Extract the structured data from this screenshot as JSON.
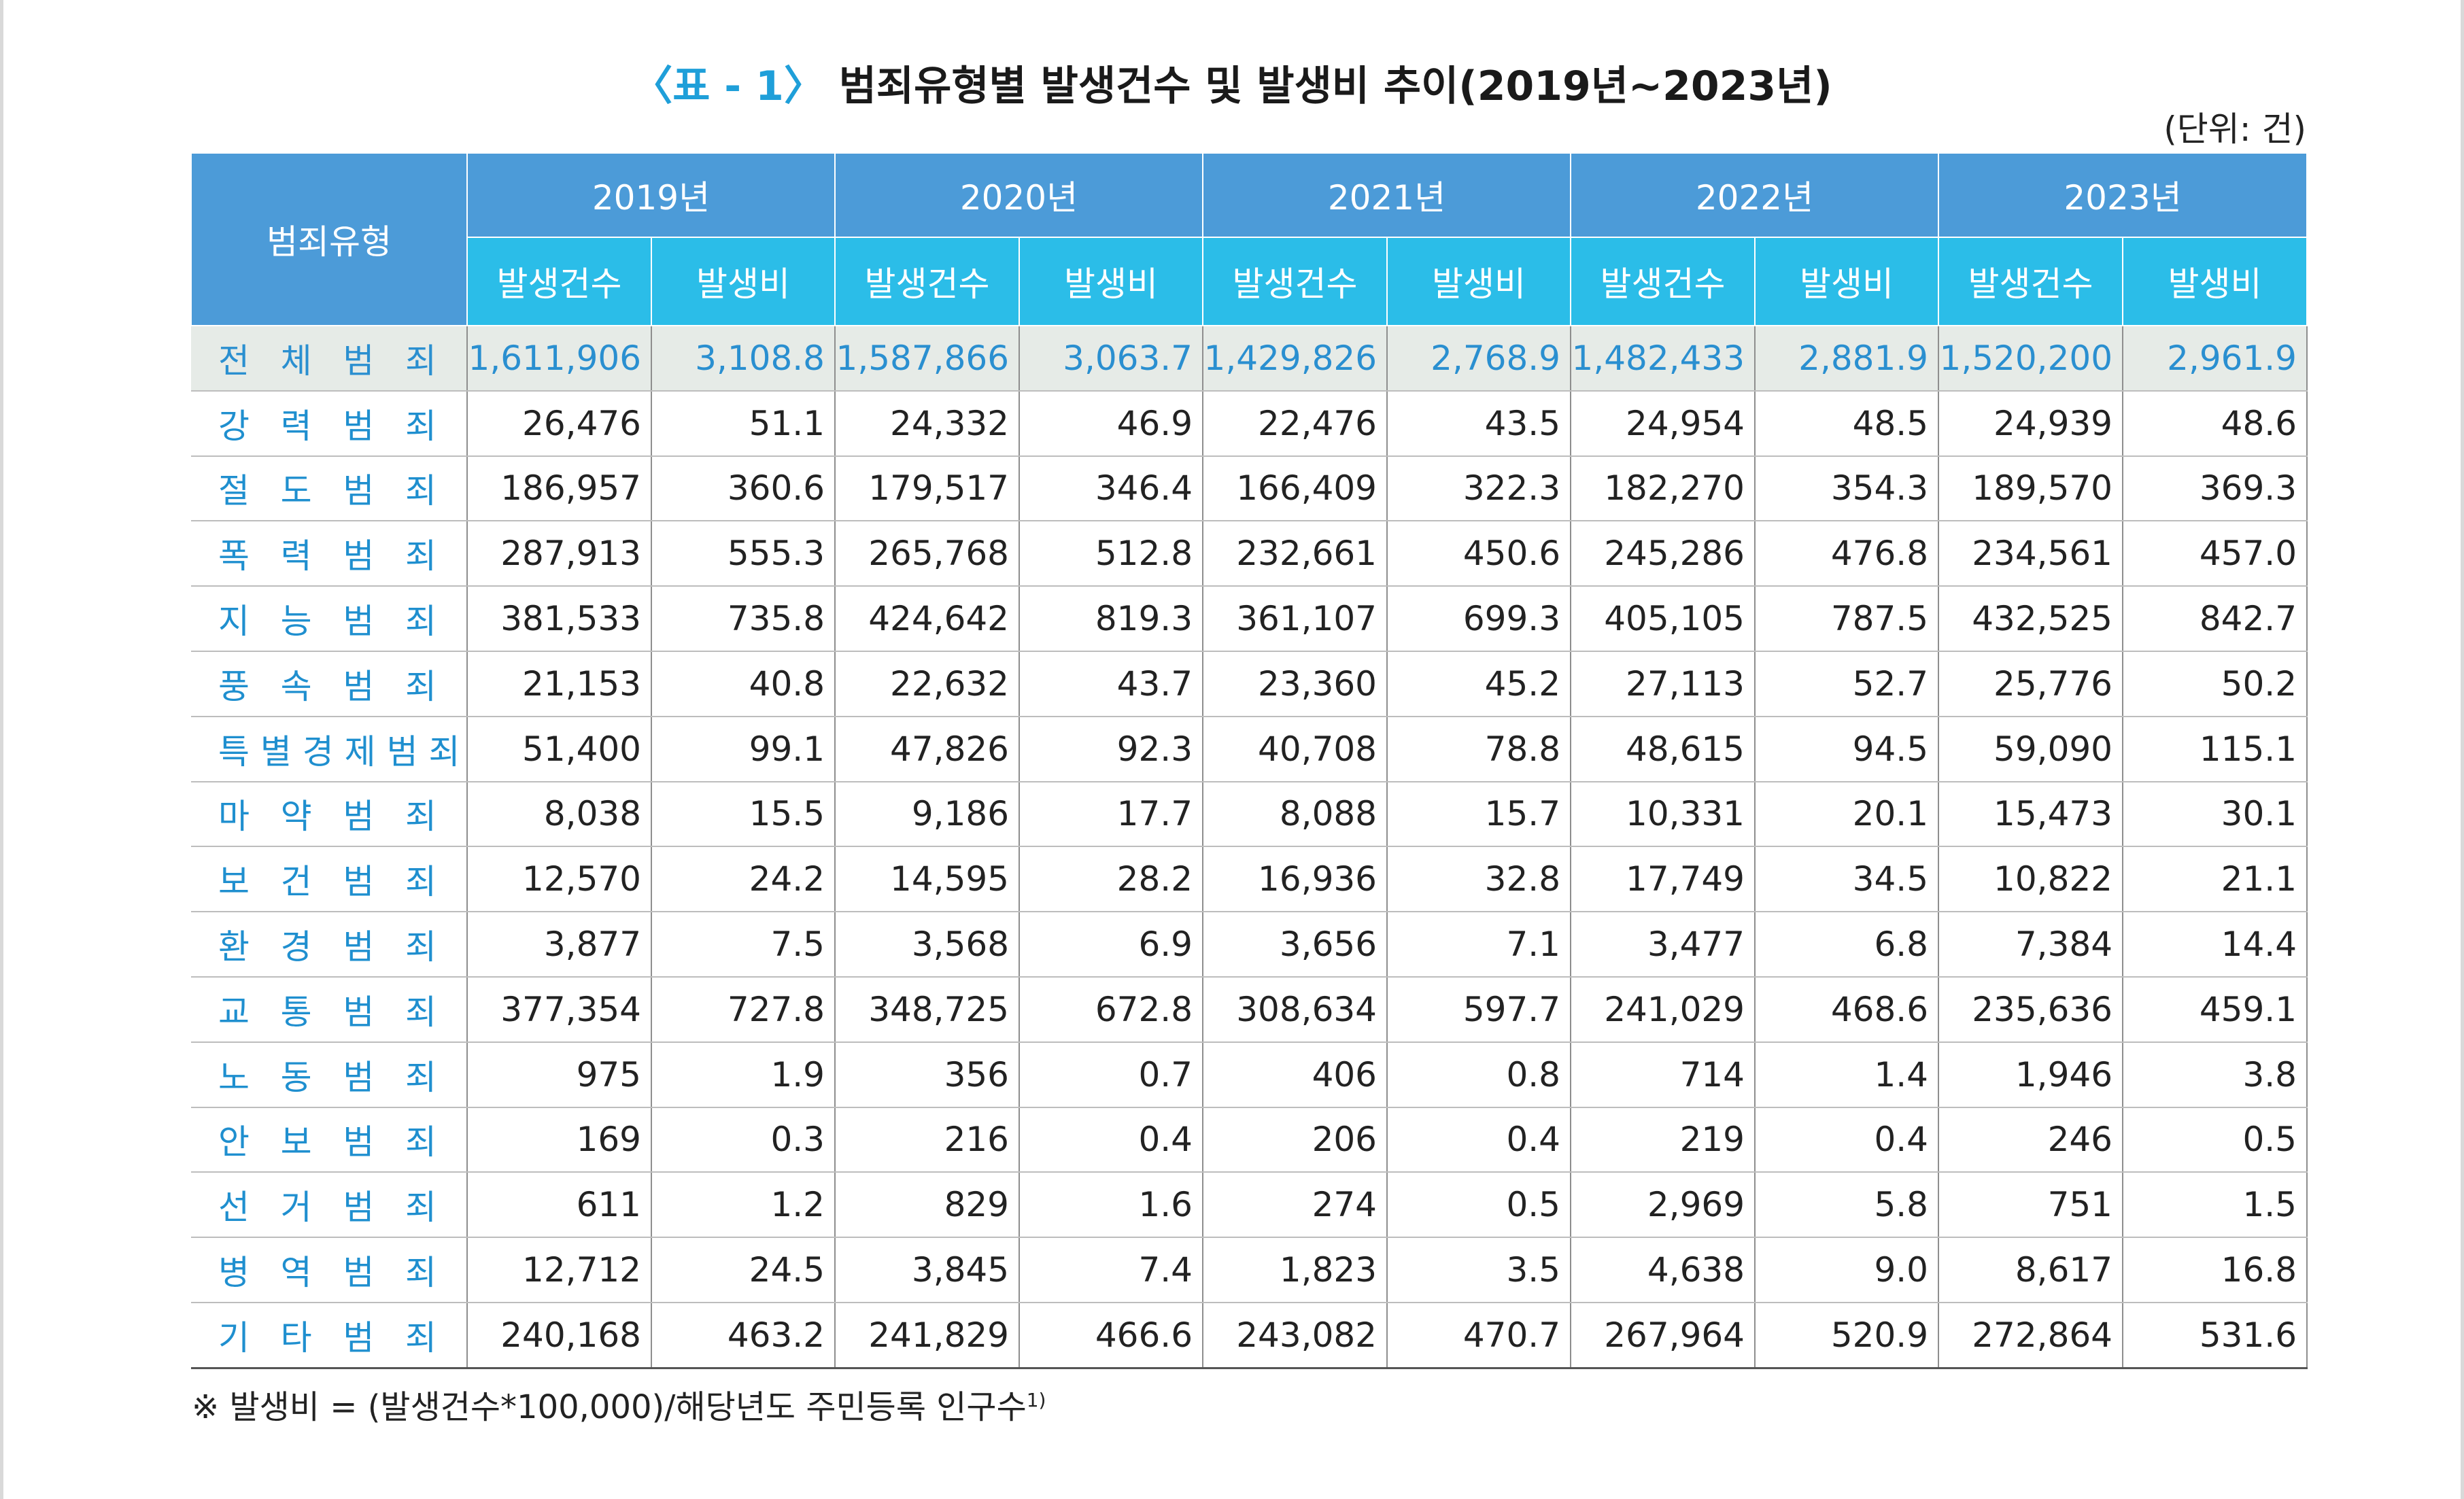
{
  "title": {
    "tag": "〈표 - 1〉",
    "text": "범죄유형별 발생건수 및 발생비 추이(2019년~2023년)"
  },
  "unit": "(단위: 건)",
  "header": {
    "type_label": "범죄유형",
    "years": [
      "2019년",
      "2020년",
      "2021년",
      "2022년",
      "2023년"
    ],
    "count_label": "발생건수",
    "rate_label": "발생비"
  },
  "rows": [
    {
      "type": "전체범죄",
      "values": [
        "1,611,906",
        "3,108.8",
        "1,587,866",
        "3,063.7",
        "1,429,826",
        "2,768.9",
        "1,482,433",
        "2,881.9",
        "1,520,200",
        "2,961.9"
      ]
    },
    {
      "type": "강력범죄",
      "values": [
        "26,476",
        "51.1",
        "24,332",
        "46.9",
        "22,476",
        "43.5",
        "24,954",
        "48.5",
        "24,939",
        "48.6"
      ]
    },
    {
      "type": "절도범죄",
      "values": [
        "186,957",
        "360.6",
        "179,517",
        "346.4",
        "166,409",
        "322.3",
        "182,270",
        "354.3",
        "189,570",
        "369.3"
      ]
    },
    {
      "type": "폭력범죄",
      "values": [
        "287,913",
        "555.3",
        "265,768",
        "512.8",
        "232,661",
        "450.6",
        "245,286",
        "476.8",
        "234,561",
        "457.0"
      ]
    },
    {
      "type": "지능범죄",
      "values": [
        "381,533",
        "735.8",
        "424,642",
        "819.3",
        "361,107",
        "699.3",
        "405,105",
        "787.5",
        "432,525",
        "842.7"
      ]
    },
    {
      "type": "풍속범죄",
      "values": [
        "21,153",
        "40.8",
        "22,632",
        "43.7",
        "23,360",
        "45.2",
        "27,113",
        "52.7",
        "25,776",
        "50.2"
      ]
    },
    {
      "type": "특별경제범죄",
      "values": [
        "51,400",
        "99.1",
        "47,826",
        "92.3",
        "40,708",
        "78.8",
        "48,615",
        "94.5",
        "59,090",
        "115.1"
      ]
    },
    {
      "type": "마약범죄",
      "values": [
        "8,038",
        "15.5",
        "9,186",
        "17.7",
        "8,088",
        "15.7",
        "10,331",
        "20.1",
        "15,473",
        "30.1"
      ]
    },
    {
      "type": "보건범죄",
      "values": [
        "12,570",
        "24.2",
        "14,595",
        "28.2",
        "16,936",
        "32.8",
        "17,749",
        "34.5",
        "10,822",
        "21.1"
      ]
    },
    {
      "type": "환경범죄",
      "values": [
        "3,877",
        "7.5",
        "3,568",
        "6.9",
        "3,656",
        "7.1",
        "3,477",
        "6.8",
        "7,384",
        "14.4"
      ]
    },
    {
      "type": "교통범죄",
      "values": [
        "377,354",
        "727.8",
        "348,725",
        "672.8",
        "308,634",
        "597.7",
        "241,029",
        "468.6",
        "235,636",
        "459.1"
      ]
    },
    {
      "type": "노동범죄",
      "values": [
        "975",
        "1.9",
        "356",
        "0.7",
        "406",
        "0.8",
        "714",
        "1.4",
        "1,946",
        "3.8"
      ]
    },
    {
      "type": "안보범죄",
      "values": [
        "169",
        "0.3",
        "216",
        "0.4",
        "206",
        "0.4",
        "219",
        "0.4",
        "246",
        "0.5"
      ]
    },
    {
      "type": "선거범죄",
      "values": [
        "611",
        "1.2",
        "829",
        "1.6",
        "274",
        "0.5",
        "2,969",
        "5.8",
        "751",
        "1.5"
      ]
    },
    {
      "type": "병역범죄",
      "values": [
        "12,712",
        "24.5",
        "3,845",
        "7.4",
        "1,823",
        "3.5",
        "4,638",
        "9.0",
        "8,617",
        "16.8"
      ]
    },
    {
      "type": "기타범죄",
      "values": [
        "240,168",
        "463.2",
        "241,829",
        "466.6",
        "243,082",
        "470.7",
        "267,964",
        "520.9",
        "272,864",
        "531.6"
      ]
    }
  ],
  "note": {
    "text": "※ 발생비 = (발생건수*100,000)/해당년도 주민등록 인구수",
    "superscript": "1)"
  }
}
